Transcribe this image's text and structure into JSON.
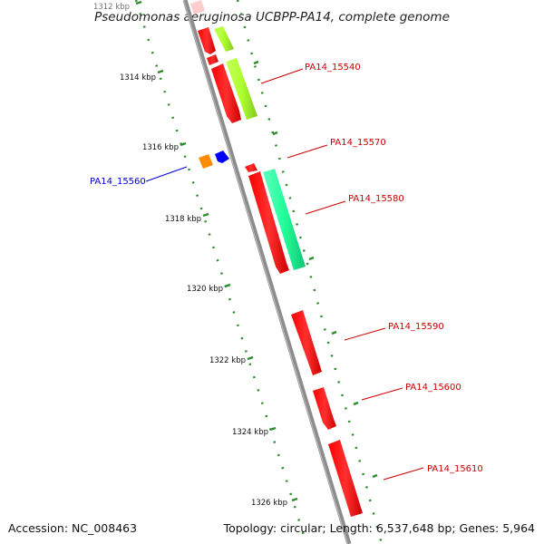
{
  "title": "Pseudomonas aeruginosa UCBPP-PA14, complete genome",
  "footer": {
    "accession": "Accession: NC_008463",
    "summary": "Topology: circular; Length: 6,537,648 bp; Genes: 5,964"
  },
  "ticks": [
    {
      "label": "1312 kbp"
    },
    {
      "label": "1314 kbp"
    },
    {
      "label": "1316 kbp"
    },
    {
      "label": "1318 kbp"
    },
    {
      "label": "1320 kbp"
    },
    {
      "label": "1322 kbp"
    },
    {
      "label": "1324 kbp"
    },
    {
      "label": "1326 kbp"
    }
  ],
  "gene_labels": [
    {
      "text": "PA14_15540",
      "color": "#cc0000"
    },
    {
      "text": "PA14_15570",
      "color": "#cc0000"
    },
    {
      "text": "PA14_15560",
      "color": "#0000cc"
    },
    {
      "text": "PA14_15580",
      "color": "#cc0000"
    },
    {
      "text": "PA14_15590",
      "color": "#cc0000"
    },
    {
      "text": "PA14_15600",
      "color": "#cc0000"
    },
    {
      "text": "PA14_15610",
      "color": "#cc0000"
    }
  ],
  "colors": {
    "backbone": "#8c8c8c",
    "cds": "#ff0000",
    "gene": "#adff2f",
    "rna": "#00ff99",
    "tick": "#2e8b2e",
    "small_orange": "#ff8c00",
    "small_blue": "#0000ff",
    "faded": "#ffcccc"
  }
}
